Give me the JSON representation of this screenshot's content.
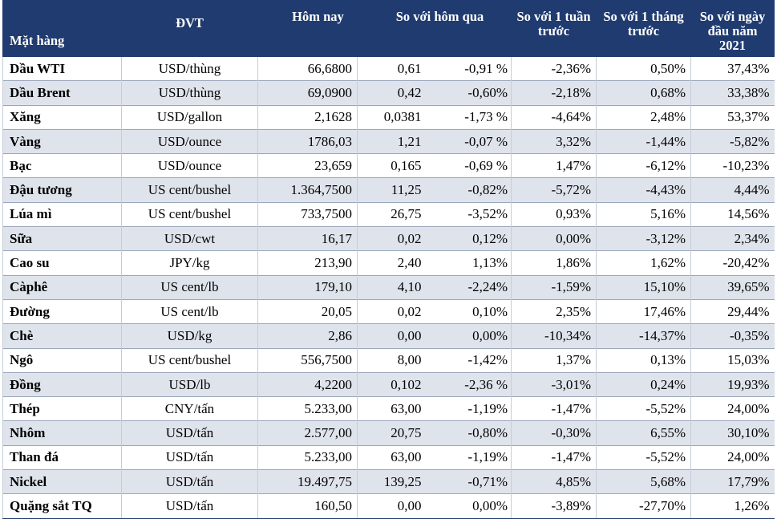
{
  "headers": {
    "item": "Mặt hàng",
    "unit": "ĐVT",
    "today": "Hôm nay",
    "vs_yesterday": "So với hôm qua",
    "vs_week": "So với 1 tuần trước",
    "vs_month": "So với 1 tháng trước",
    "vs_year_start": "So với ngày đầu năm 2021"
  },
  "rows": [
    {
      "name": "Dầu WTI",
      "unit": "USD/thùng",
      "today": "66,6800",
      "chg": "0,61",
      "chg_pct": "-0,91 %",
      "week": "-2,36%",
      "month": "0,50%",
      "ytd": "37,43%"
    },
    {
      "name": "Dầu Brent",
      "unit": "USD/thùng",
      "today": "69,0900",
      "chg": "0,42",
      "chg_pct": "-0,60%",
      "week": "-2,18%",
      "month": "0,68%",
      "ytd": "33,38%"
    },
    {
      "name": "Xăng",
      "unit": "USD/gallon",
      "today": "2,1628",
      "chg": "0,0381",
      "chg_pct": "-1,73 %",
      "week": "-4,64%",
      "month": "2,48%",
      "ytd": "53,37%"
    },
    {
      "name": "Vàng",
      "unit": "USD/ounce",
      "today": "1786,03",
      "chg": "1,21",
      "chg_pct": "-0,07 %",
      "week": "3,32%",
      "month": "-1,44%",
      "ytd": "-5,82%"
    },
    {
      "name": "Bạc",
      "unit": "USD/ounce",
      "today": "23,659",
      "chg": "0,165",
      "chg_pct": "-0,69 %",
      "week": "1,47%",
      "month": "-6,12%",
      "ytd": "-10,23%"
    },
    {
      "name": "Đậu tương",
      "unit": "US cent/bushel",
      "today": "1.364,7500",
      "chg": "11,25",
      "chg_pct": "-0,82%",
      "week": "-5,72%",
      "month": "-4,43%",
      "ytd": "4,44%"
    },
    {
      "name": "Lúa mì",
      "unit": "US cent/bushel",
      "today": "733,7500",
      "chg": "26,75",
      "chg_pct": "-3,52%",
      "week": "0,93%",
      "month": "5,16%",
      "ytd": "14,56%"
    },
    {
      "name": "Sữa",
      "unit": "USD/cwt",
      "today": "16,17",
      "chg": "0,02",
      "chg_pct": "0,12%",
      "week": "0,00%",
      "month": "-3,12%",
      "ytd": "2,34%"
    },
    {
      "name": "Cao su",
      "unit": "JPY/kg",
      "today": "213,90",
      "chg": "2,40",
      "chg_pct": "1,13%",
      "week": "1,86%",
      "month": "1,62%",
      "ytd": "-20,42%"
    },
    {
      "name": "Càphê",
      "unit": "US cent/lb",
      "today": "179,10",
      "chg": "4,10",
      "chg_pct": "-2,24%",
      "week": "-1,59%",
      "month": "15,10%",
      "ytd": "39,65%"
    },
    {
      "name": "Đường",
      "unit": "US cent/lb",
      "today": "20,05",
      "chg": "0,02",
      "chg_pct": "0,10%",
      "week": "2,35%",
      "month": "17,46%",
      "ytd": "29,44%"
    },
    {
      "name": "Chè",
      "unit": "USD/kg",
      "today": "2,86",
      "chg": "0,00",
      "chg_pct": "0,00%",
      "week": "-10,34%",
      "month": "-14,37%",
      "ytd": "-0,35%"
    },
    {
      "name": "Ngô",
      "unit": "US cent/bushel",
      "today": "556,7500",
      "chg": "8,00",
      "chg_pct": "-1,42%",
      "week": "1,37%",
      "month": "0,13%",
      "ytd": "15,03%"
    },
    {
      "name": "Đồng",
      "unit": "USD/lb",
      "today": "4,2200",
      "chg": "0,102",
      "chg_pct": "-2,36 %",
      "week": "-3,01%",
      "month": "0,24%",
      "ytd": "19,93%"
    },
    {
      "name": "Thép",
      "unit": "CNY/tấn",
      "today": "5.233,00",
      "chg": "63,00",
      "chg_pct": "-1,19%",
      "week": "-1,47%",
      "month": "-5,52%",
      "ytd": "24,00%"
    },
    {
      "name": "Nhôm",
      "unit": "USD/tấn",
      "today": "2.577,00",
      "chg": "20,75",
      "chg_pct": "-0,80%",
      "week": "-0,30%",
      "month": "6,55%",
      "ytd": "30,10%"
    },
    {
      "name": "Than đá",
      "unit": "USD/tấn",
      "today": "5.233,00",
      "chg": "63,00",
      "chg_pct": "-1,19%",
      "week": "-1,47%",
      "month": "-5,52%",
      "ytd": "24,00%"
    },
    {
      "name": "Nickel",
      "unit": "USD/tấn",
      "today": "19.497,75",
      "chg": "139,25",
      "chg_pct": "-0,71%",
      "week": "4,85%",
      "month": "5,68%",
      "ytd": "17,79%"
    },
    {
      "name": "Quặng sắt TQ",
      "unit": "USD/tấn",
      "today": "160,50",
      "chg": "0,00",
      "chg_pct": "0,00%",
      "week": "-3,89%",
      "month": "-27,70%",
      "ytd": "1,26%"
    }
  ]
}
